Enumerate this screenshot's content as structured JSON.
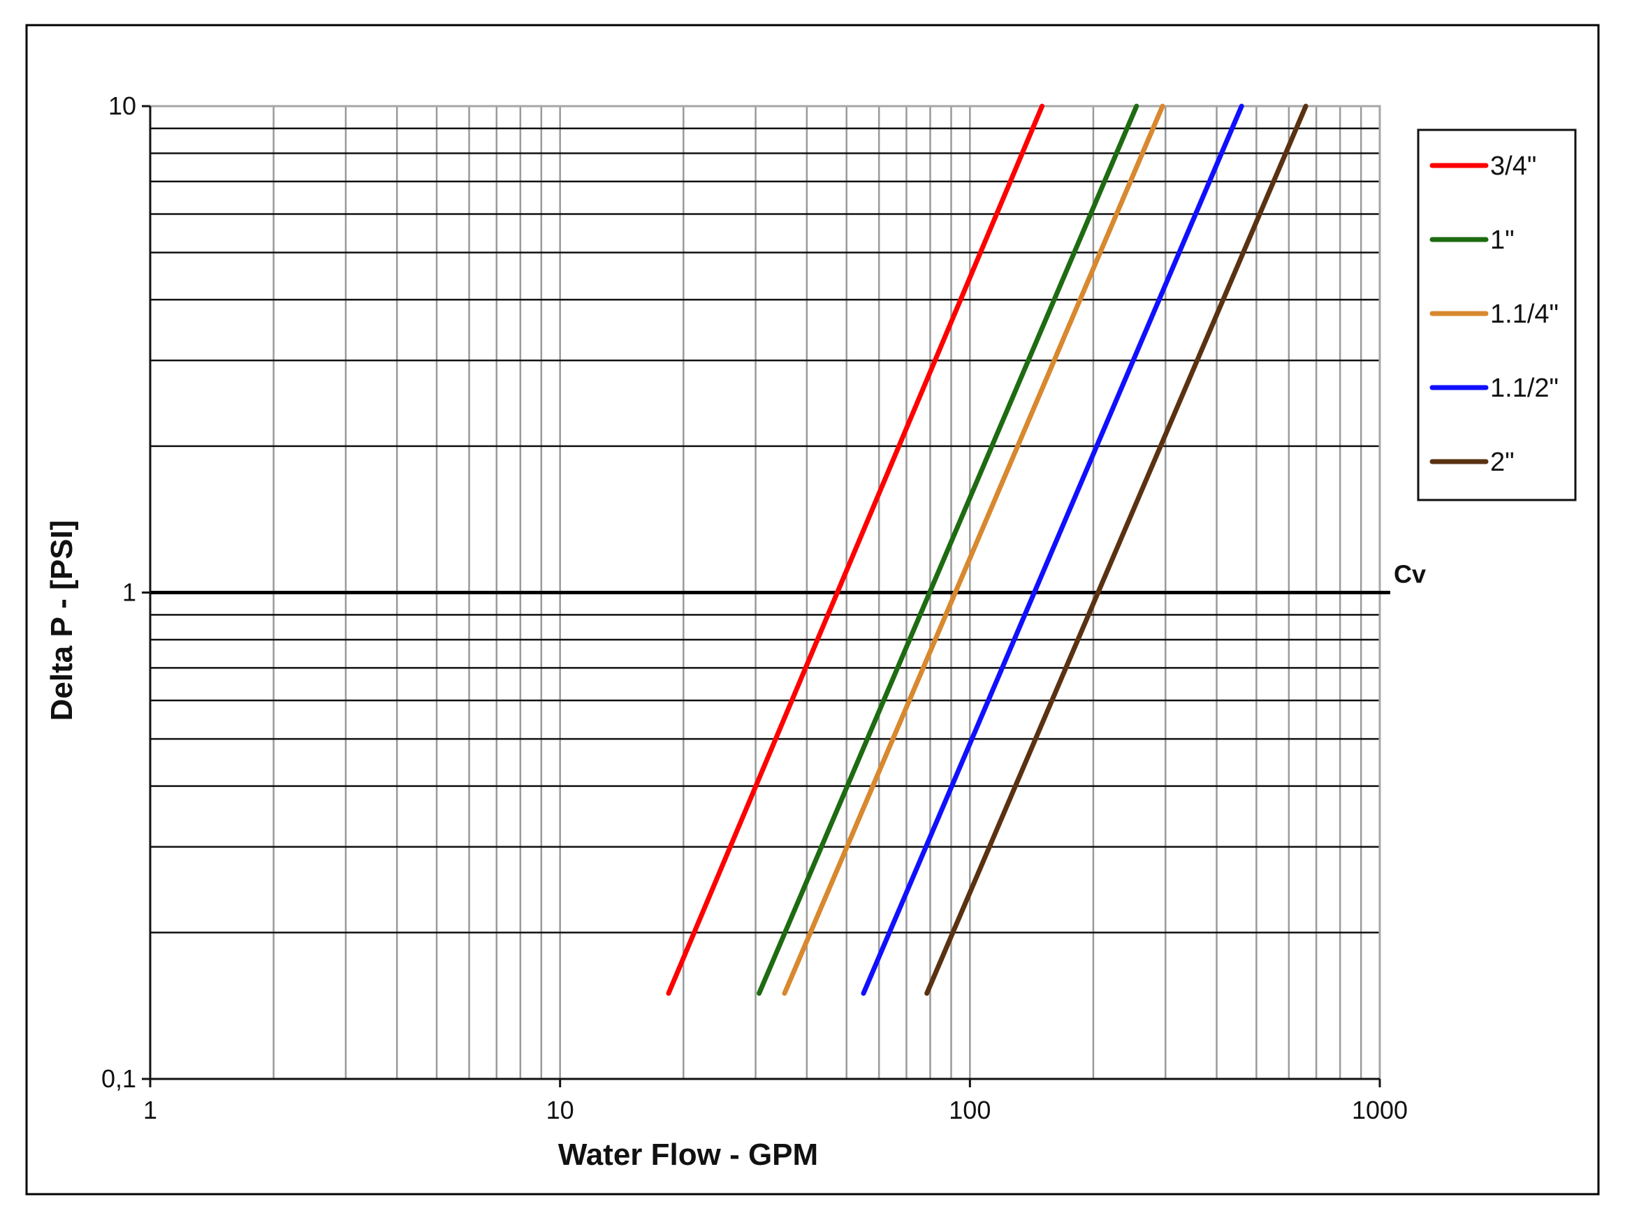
{
  "chart_data": {
    "type": "line",
    "title": "",
    "xlabel": "Water Flow  - GPM",
    "ylabel": "Delta P - [PSI]",
    "x_scale": "log",
    "y_scale": "log",
    "xlim": [
      1,
      1000
    ],
    "ylim": [
      0.1,
      10
    ],
    "x_tick_labels": [
      "1",
      "10",
      "100",
      "1000"
    ],
    "y_tick_labels": [
      "0,1",
      "1",
      "10"
    ],
    "grid": true,
    "legend_position": "right",
    "reference_line": {
      "label": "Cv",
      "y": 1
    },
    "series": [
      {
        "name": "3/4\"",
        "color": "#ff0000",
        "points": [
          [
            18.4,
            0.15
          ],
          [
            150,
            10
          ]
        ]
      },
      {
        "name": "1\"",
        "color": "#1e6b12",
        "points": [
          [
            30.6,
            0.15
          ],
          [
            255,
            10
          ]
        ]
      },
      {
        "name": "1.1/4\"",
        "color": "#d8882e",
        "points": [
          [
            35.3,
            0.15
          ],
          [
            295,
            10
          ]
        ]
      },
      {
        "name": "1.1/2\"",
        "color": "#1010ff",
        "points": [
          [
            55.0,
            0.15
          ],
          [
            460,
            10
          ]
        ]
      },
      {
        "name": "2\"",
        "color": "#5a3212",
        "points": [
          [
            78.5,
            0.15
          ],
          [
            660,
            10
          ]
        ]
      }
    ]
  }
}
